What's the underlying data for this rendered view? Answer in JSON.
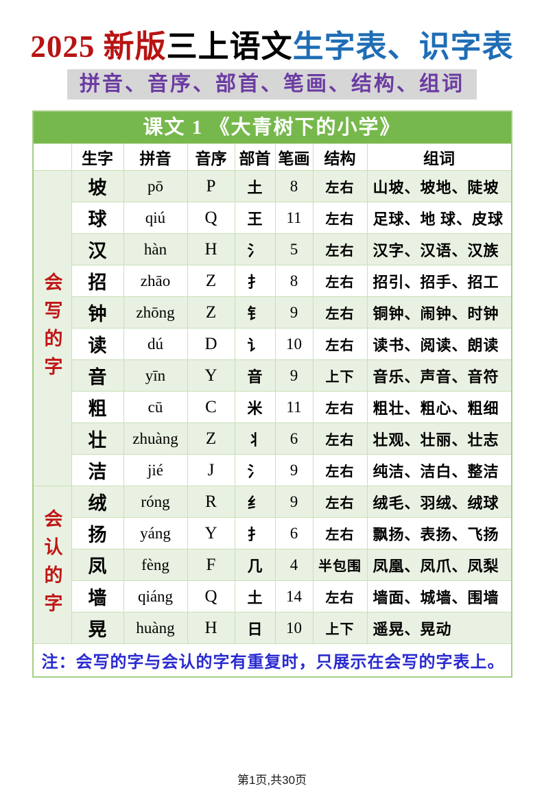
{
  "page": {
    "title": {
      "red": "2025 新版",
      "black": "三上语文",
      "blue": "生字表、识字表"
    },
    "subtitle": "拼音、音序、部首、笔画、结构、组词",
    "footer": "第1页,共30页"
  },
  "colors": {
    "title_red": "#b81414",
    "title_blue": "#1f6db5",
    "subtitle_purple": "#6b3ba2",
    "subtitle_bg": "#d6d6d6",
    "header_green": "#77b84c",
    "row_green": "#e9f1e2",
    "border_green": "#c9e0b6",
    "group_label_red": "#c01616",
    "note_blue": "#2a2ad0"
  },
  "table": {
    "lesson_title": "课文 1 《大青树下的小学》",
    "columns": [
      "生字",
      "拼音",
      "音序",
      "部首",
      "笔画",
      "结构",
      "组词"
    ],
    "groups": [
      {
        "label": "会写的字",
        "rows": [
          {
            "char": "坡",
            "pinyin": "pō",
            "initial": "P",
            "radical": "土",
            "strokes": "8",
            "structure": "左右",
            "words": "山坡、坡地、陡坡"
          },
          {
            "char": "球",
            "pinyin": "qiú",
            "initial": "Q",
            "radical": "王",
            "strokes": "11",
            "structure": "左右",
            "words": "足球、地 球、皮球"
          },
          {
            "char": "汉",
            "pinyin": "hàn",
            "initial": "H",
            "radical": "氵",
            "strokes": "5",
            "structure": "左右",
            "words": "汉字、汉语、汉族"
          },
          {
            "char": "招",
            "pinyin": "zhāo",
            "initial": "Z",
            "radical": "扌",
            "strokes": "8",
            "structure": "左右",
            "words": "招引、招手、招工"
          },
          {
            "char": "钟",
            "pinyin": "zhōng",
            "initial": "Z",
            "radical": "钅",
            "strokes": "9",
            "structure": "左右",
            "words": "铜钟、闹钟、时钟"
          },
          {
            "char": "读",
            "pinyin": "dú",
            "initial": "D",
            "radical": "讠",
            "strokes": "10",
            "structure": "左右",
            "words": "读书、阅读、朗读"
          },
          {
            "char": "音",
            "pinyin": "yīn",
            "initial": "Y",
            "radical": "音",
            "strokes": "9",
            "structure": "上下",
            "words": "音乐、声音、音符"
          },
          {
            "char": "粗",
            "pinyin": "cū",
            "initial": "C",
            "radical": "米",
            "strokes": "11",
            "structure": "左右",
            "words": "粗壮、粗心、粗细"
          },
          {
            "char": "壮",
            "pinyin": "zhuàng",
            "initial": "Z",
            "radical": "丬",
            "strokes": "6",
            "structure": "左右",
            "words": "壮观、壮丽、壮志"
          },
          {
            "char": "洁",
            "pinyin": "jié",
            "initial": "J",
            "radical": "氵",
            "strokes": "9",
            "structure": "左右",
            "words": "纯洁、洁白、整洁"
          }
        ]
      },
      {
        "label": "会认的字",
        "rows": [
          {
            "char": "绒",
            "pinyin": "róng",
            "initial": "R",
            "radical": "纟",
            "strokes": "9",
            "structure": "左右",
            "words": "绒毛、羽绒、绒球"
          },
          {
            "char": "扬",
            "pinyin": "yáng",
            "initial": "Y",
            "radical": "扌",
            "strokes": "6",
            "structure": "左右",
            "words": "飘扬、表扬、飞扬"
          },
          {
            "char": "凤",
            "pinyin": "fèng",
            "initial": "F",
            "radical": "几",
            "strokes": "4",
            "structure": "半包围",
            "words": "凤凰、凤爪、凤梨"
          },
          {
            "char": "墙",
            "pinyin": "qiáng",
            "initial": "Q",
            "radical": "土",
            "strokes": "14",
            "structure": "左右",
            "words": "墙面、城墙、围墙"
          },
          {
            "char": "晃",
            "pinyin": "huàng",
            "initial": "H",
            "radical": "日",
            "strokes": "10",
            "structure": "上下",
            "words": "遥晃、晃动"
          }
        ]
      }
    ],
    "note": "注：会写的字与会认的字有重复时，只展示在会写的字表上。"
  }
}
